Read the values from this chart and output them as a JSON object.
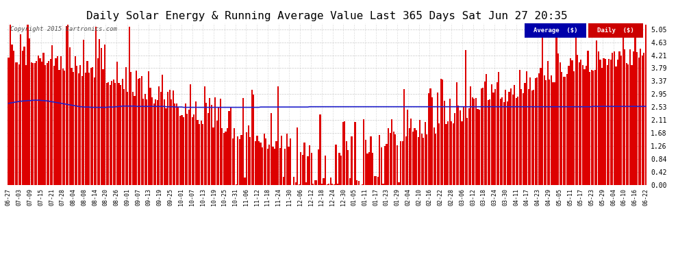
{
  "title": "Daily Solar Energy & Running Average Value Last 365 Days Sat Jun 27 20:35",
  "copyright_text": "Copyright 2015 Cartronics.com",
  "yticks": [
    0.0,
    0.42,
    0.84,
    1.26,
    1.68,
    2.11,
    2.53,
    2.95,
    3.37,
    3.79,
    4.21,
    4.63,
    5.05
  ],
  "ylim": [
    0.0,
    5.25
  ],
  "bar_color": "#dd0000",
  "avg_color": "#2222cc",
  "bg_color": "#ffffff",
  "grid_color": "#bbbbbb",
  "title_fontsize": 11.5,
  "x_labels": [
    "06-27",
    "07-03",
    "07-09",
    "07-15",
    "07-21",
    "07-28",
    "08-04",
    "08-08",
    "08-14",
    "08-20",
    "08-26",
    "09-01",
    "09-07",
    "09-13",
    "09-19",
    "09-25",
    "10-01",
    "10-07",
    "10-13",
    "10-19",
    "10-25",
    "10-31",
    "11-06",
    "11-12",
    "11-18",
    "11-24",
    "11-30",
    "12-06",
    "12-12",
    "12-18",
    "12-24",
    "12-30",
    "01-05",
    "01-11",
    "01-17",
    "01-23",
    "01-29",
    "02-04",
    "02-10",
    "02-16",
    "02-22",
    "02-28",
    "03-06",
    "03-12",
    "03-18",
    "03-24",
    "03-30",
    "04-11",
    "04-17",
    "04-23",
    "04-29",
    "05-05",
    "05-11",
    "05-17",
    "05-23",
    "05-29",
    "06-04",
    "06-10",
    "06-16",
    "06-22"
  ],
  "avg_line": [
    2.65,
    2.66,
    2.67,
    2.68,
    2.69,
    2.7,
    2.71,
    2.72,
    2.72,
    2.73,
    2.73,
    2.74,
    2.74,
    2.74,
    2.75,
    2.75,
    2.75,
    2.75,
    2.75,
    2.74,
    2.74,
    2.73,
    2.73,
    2.72,
    2.71,
    2.7,
    2.69,
    2.68,
    2.67,
    2.66,
    2.65,
    2.64,
    2.63,
    2.62,
    2.61,
    2.6,
    2.59,
    2.58,
    2.57,
    2.56,
    2.55,
    2.54,
    2.54,
    2.53,
    2.53,
    2.53,
    2.53,
    2.52,
    2.52,
    2.52,
    2.52,
    2.52,
    2.52,
    2.52,
    2.52,
    2.52,
    2.52,
    2.53,
    2.53,
    2.53,
    2.53,
    2.54,
    2.54,
    2.55,
    2.55,
    2.56,
    2.56,
    2.56,
    2.56,
    2.56,
    2.56,
    2.56,
    2.56,
    2.55,
    2.55,
    2.55,
    2.55,
    2.55,
    2.55,
    2.55,
    2.55,
    2.55,
    2.55,
    2.55,
    2.55,
    2.55,
    2.55,
    2.55,
    2.55,
    2.55,
    2.54,
    2.54,
    2.54,
    2.54,
    2.54,
    2.53,
    2.53,
    2.53,
    2.53,
    2.53,
    2.52,
    2.52,
    2.52,
    2.52,
    2.52,
    2.52,
    2.52,
    2.52,
    2.52,
    2.52,
    2.52,
    2.52,
    2.52,
    2.52,
    2.52,
    2.52,
    2.52,
    2.52,
    2.52,
    2.52,
    2.52,
    2.52,
    2.52,
    2.52,
    2.52,
    2.52,
    2.52,
    2.52,
    2.52,
    2.52,
    2.52,
    2.52,
    2.52,
    2.52,
    2.52,
    2.52,
    2.52,
    2.52,
    2.52,
    2.52,
    2.52,
    2.52,
    2.52,
    2.52,
    2.53,
    2.53,
    2.53,
    2.53,
    2.53,
    2.53,
    2.53,
    2.53,
    2.53,
    2.53,
    2.53,
    2.53,
    2.53,
    2.53,
    2.53,
    2.53,
    2.53,
    2.53,
    2.53,
    2.53,
    2.53,
    2.53,
    2.53,
    2.53,
    2.53,
    2.53,
    2.53,
    2.53,
    2.54,
    2.54,
    2.54,
    2.54,
    2.54,
    2.54,
    2.54,
    2.54,
    2.54,
    2.54,
    2.54,
    2.54,
    2.54,
    2.54,
    2.54,
    2.54,
    2.54,
    2.54,
    2.54,
    2.54,
    2.54,
    2.54,
    2.54,
    2.54,
    2.54,
    2.54,
    2.54,
    2.54,
    2.54,
    2.54,
    2.54,
    2.54,
    2.54,
    2.54,
    2.54,
    2.54,
    2.54,
    2.54,
    2.54,
    2.54,
    2.54,
    2.54,
    2.54,
    2.54,
    2.54,
    2.54,
    2.54,
    2.54,
    2.54,
    2.54,
    2.54,
    2.54,
    2.54,
    2.54,
    2.54,
    2.54,
    2.54,
    2.54,
    2.54,
    2.54,
    2.54,
    2.54,
    2.54,
    2.54,
    2.54,
    2.54,
    2.54,
    2.54,
    2.54,
    2.54,
    2.54,
    2.54,
    2.54,
    2.54,
    2.54,
    2.54,
    2.54,
    2.54,
    2.54,
    2.54,
    2.54,
    2.54,
    2.54,
    2.54,
    2.54,
    2.54,
    2.54,
    2.54,
    2.54,
    2.54,
    2.54,
    2.54,
    2.54,
    2.54,
    2.54,
    2.54,
    2.54,
    2.54,
    2.54,
    2.54,
    2.54,
    2.54,
    2.54,
    2.54,
    2.54,
    2.54,
    2.54,
    2.54,
    2.54,
    2.54,
    2.54,
    2.54,
    2.54,
    2.54,
    2.54,
    2.54,
    2.54,
    2.54,
    2.54,
    2.54,
    2.54,
    2.54,
    2.54,
    2.54,
    2.54,
    2.54,
    2.54,
    2.54,
    2.54,
    2.54,
    2.54,
    2.54,
    2.54,
    2.54,
    2.54,
    2.54,
    2.54,
    2.54,
    2.54,
    2.54,
    2.54,
    2.54,
    2.54,
    2.54,
    2.54,
    2.54,
    2.54,
    2.54,
    2.54,
    2.54,
    2.54,
    2.54,
    2.54,
    2.54,
    2.54,
    2.54,
    2.54,
    2.54,
    2.54,
    2.54,
    2.54,
    2.54,
    2.55,
    2.55,
    2.55,
    2.55,
    2.55,
    2.55,
    2.55,
    2.55,
    2.55,
    2.55,
    2.55,
    2.55,
    2.55,
    2.55,
    2.55,
    2.55,
    2.55,
    2.55,
    2.55,
    2.55,
    2.55,
    2.55,
    2.55,
    2.55,
    2.55,
    2.55,
    2.55,
    2.55,
    2.55,
    2.55,
    2.55
  ]
}
